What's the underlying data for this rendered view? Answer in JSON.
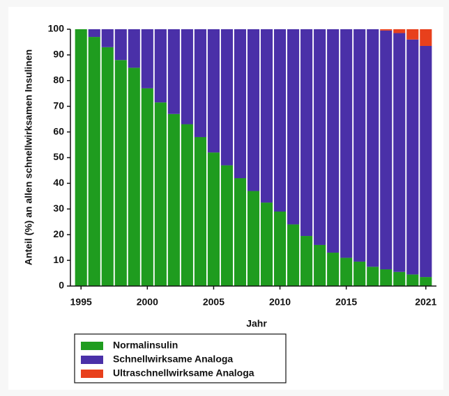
{
  "chart_data": {
    "type": "stacked-bar",
    "x_label": "Jahr",
    "y_label": "Anteil (%) an allen schnellwirksamen Insulinen",
    "x": [
      1995,
      1996,
      1997,
      1998,
      1999,
      2000,
      2001,
      2002,
      2003,
      2004,
      2005,
      2006,
      2007,
      2008,
      2009,
      2010,
      2011,
      2012,
      2013,
      2014,
      2015,
      2016,
      2017,
      2018,
      2019,
      2020,
      2021
    ],
    "series": [
      {
        "name": "Normalinsulin",
        "color": "#1f9c1f",
        "values": [
          100,
          97,
          93,
          88,
          85,
          77,
          71.5,
          67,
          63,
          58,
          52,
          47,
          42,
          37,
          32.5,
          29,
          24,
          19.5,
          16,
          13,
          11,
          9.5,
          7.5,
          6.5,
          5.5,
          4.5,
          3.5
        ]
      },
      {
        "name": "Schnellwirksame Analoga",
        "color": "#4a30a8",
        "values": [
          0,
          3,
          7,
          12,
          15,
          23,
          28.5,
          33,
          37,
          42,
          48,
          53,
          58,
          63,
          67.5,
          71,
          76,
          80.5,
          84,
          87,
          89,
          90.5,
          92.5,
          93,
          93,
          91.5,
          90
        ]
      },
      {
        "name": "Ultraschnellwirksame Analoga",
        "color": "#e8401c",
        "values": [
          0,
          0,
          0,
          0,
          0,
          0,
          0,
          0,
          0,
          0,
          0,
          0,
          0,
          0,
          0,
          0,
          0,
          0,
          0,
          0,
          0,
          0,
          0,
          0.5,
          1.5,
          4,
          6.5
        ]
      }
    ],
    "xlim": [
      1994.2,
      2021.8
    ],
    "xticks": [
      1995,
      2000,
      2005,
      2010,
      2015,
      2021
    ],
    "ylim": [
      0,
      100
    ],
    "yticks": [
      0,
      10,
      20,
      30,
      40,
      50,
      60,
      70,
      80,
      90,
      100
    ],
    "legend": "bottom-left"
  }
}
